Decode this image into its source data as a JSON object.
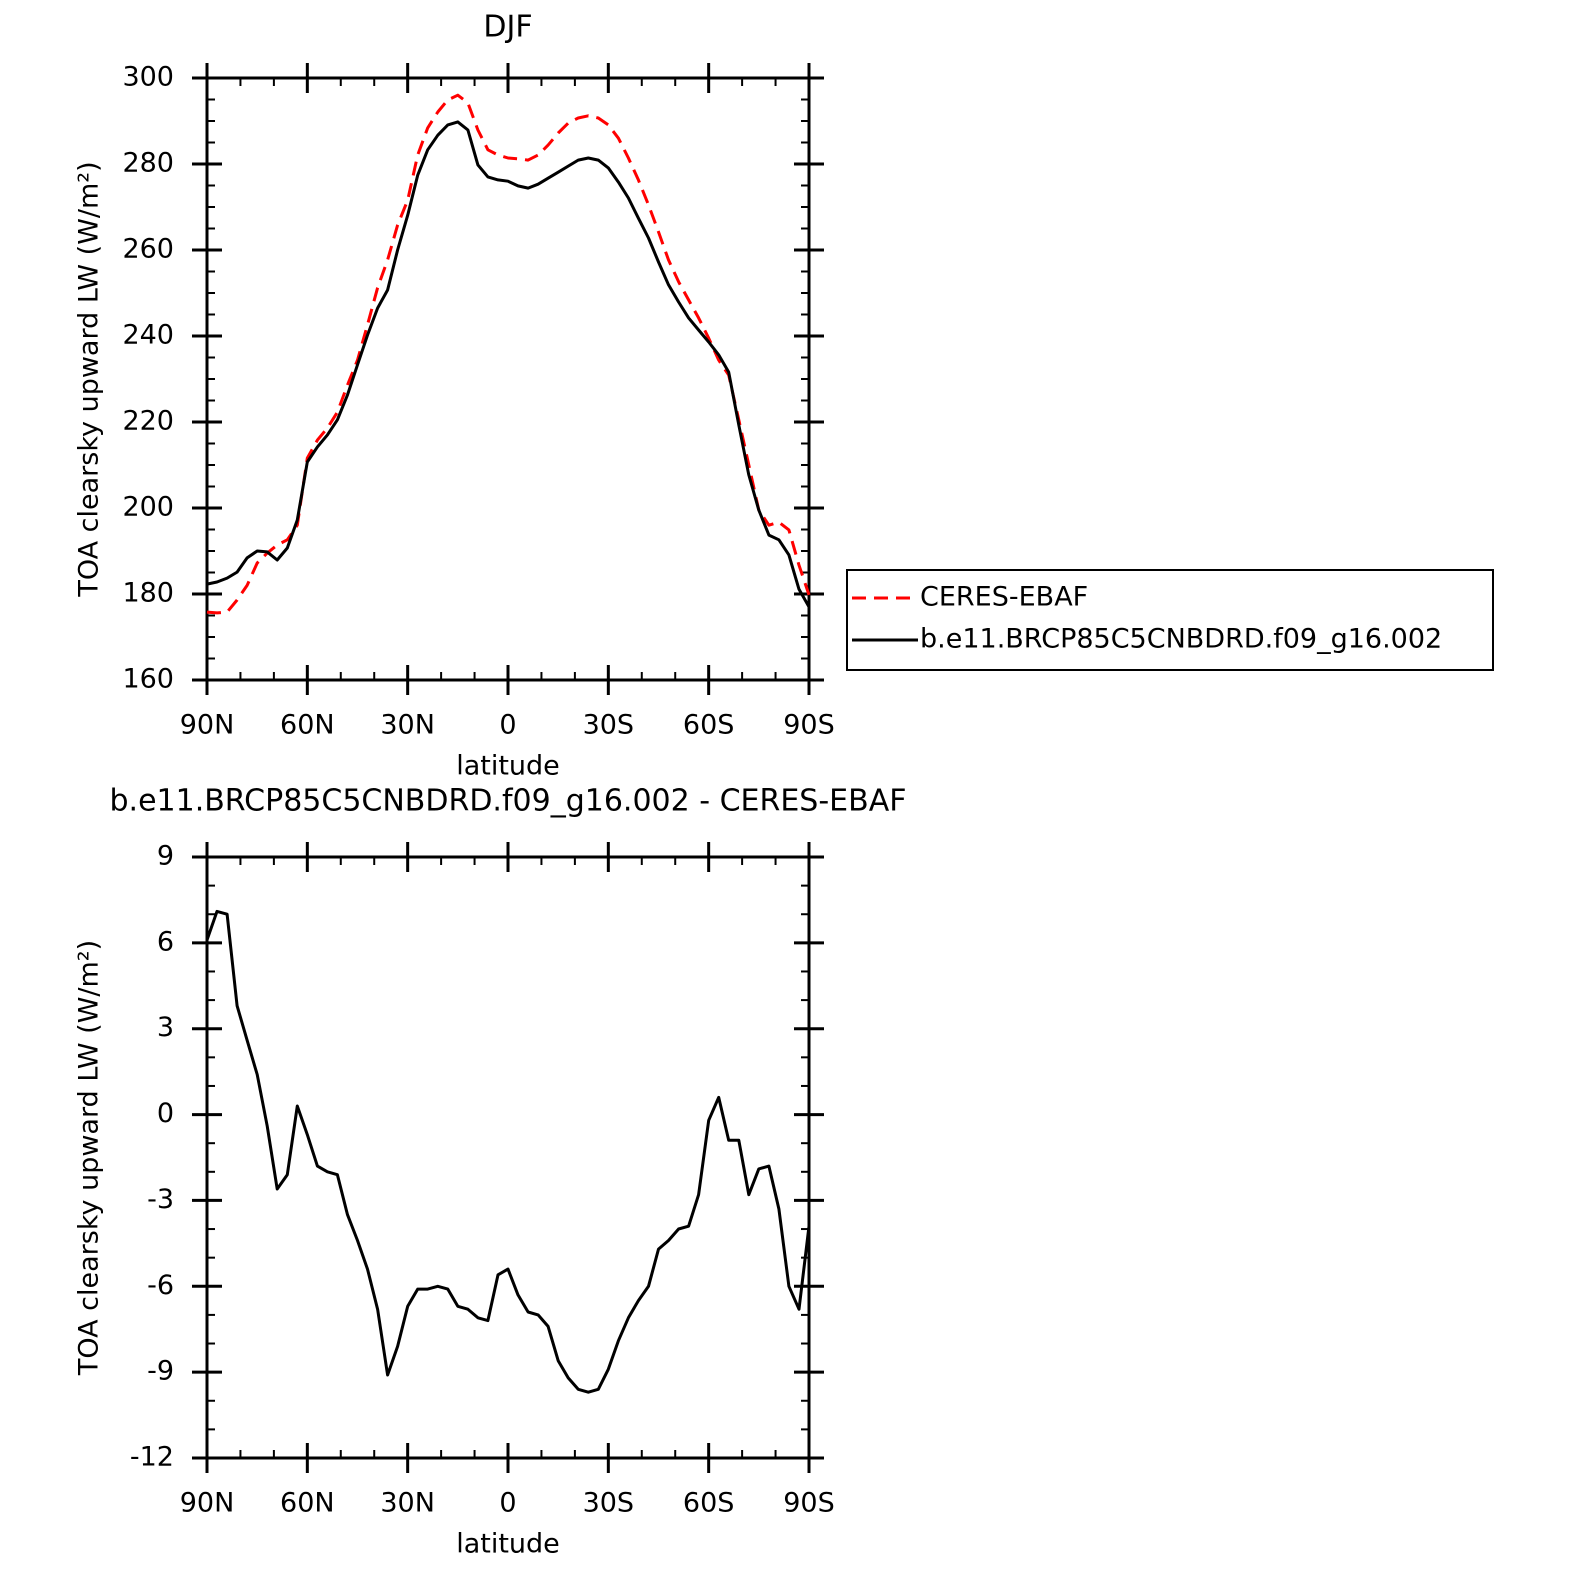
{
  "chart_data": [
    {
      "type": "line",
      "title": "DJF",
      "xlabel": "latitude",
      "ylabel": "TOA clearsky upward LW (W/m²)",
      "x": [
        90,
        87,
        84,
        81,
        78,
        75,
        72,
        69,
        66,
        63,
        60,
        57,
        54,
        51,
        48,
        45,
        42,
        39,
        36,
        33,
        30,
        27,
        24,
        21,
        18,
        15,
        12,
        9,
        6,
        3,
        0,
        -3,
        -6,
        -9,
        -12,
        -15,
        -18,
        -21,
        -24,
        -27,
        -30,
        -33,
        -36,
        -39,
        -42,
        -45,
        -48,
        -51,
        -54,
        -57,
        -60,
        -63,
        -66,
        -69,
        -72,
        -75,
        -78,
        -81,
        -84,
        -87,
        -90
      ],
      "series": [
        {
          "name": "CERES-EBAF",
          "color": "#ff0000",
          "dashed": true,
          "values": [
            175.8,
            175.6,
            175.8,
            178.6,
            182,
            187.2,
            189.5,
            191.4,
            192.6,
            196,
            211.6,
            215.8,
            218.6,
            222.3,
            228.6,
            234.4,
            242.6,
            251.2,
            257.7,
            265.8,
            271.6,
            282.1,
            288.4,
            292.1,
            294.9,
            296,
            294.2,
            287.9,
            283.3,
            282.1,
            281.4,
            281.2,
            280.9,
            282.1,
            284.4,
            287.2,
            289.5,
            290.7,
            291.2,
            290.7,
            289.1,
            286,
            281.4,
            276.3,
            270.5,
            264.2,
            257.7,
            252.6,
            248.4,
            244.2,
            239.5,
            234.4,
            230.9,
            220.5,
            210,
            199.5,
            196,
            196.7,
            194.9,
            186.7,
            179.8
          ]
        },
        {
          "name": "b.e11.BRCP85C5CNBDRD.f09_g16.002",
          "color": "#000000",
          "dashed": false,
          "values": [
            182.3,
            182.8,
            183.7,
            185.1,
            188.4,
            190,
            189.8,
            187.9,
            190.7,
            197.2,
            210.7,
            214.2,
            217,
            220.5,
            226.3,
            233.3,
            240.2,
            246.5,
            250.7,
            260,
            268.1,
            277.4,
            283.3,
            286.7,
            289.1,
            289.8,
            287.9,
            279.8,
            277,
            276.3,
            276,
            274.9,
            274.4,
            275.3,
            276.7,
            278.1,
            279.5,
            280.9,
            281.4,
            280.9,
            279.1,
            275.8,
            272.1,
            267.4,
            262.8,
            257.2,
            251.9,
            247.9,
            244.2,
            241.4,
            238.6,
            235.6,
            231.6,
            219.3,
            207.7,
            199.5,
            193.7,
            192.6,
            189.1,
            181.1,
            177
          ]
        }
      ],
      "xlim": [
        90,
        -90
      ],
      "xticks": [
        {
          "value": 90,
          "label": "90N"
        },
        {
          "value": 60,
          "label": "60N"
        },
        {
          "value": 30,
          "label": "30N"
        },
        0,
        {
          "value": -30,
          "label": "30S"
        },
        {
          "value": -60,
          "label": "60S"
        },
        {
          "value": -90,
          "label": "90S"
        }
      ],
      "xminorticks": [
        80,
        70,
        50,
        40,
        20,
        10,
        -10,
        -20,
        -40,
        -50,
        -70,
        -80
      ],
      "ylim": [
        160,
        300
      ],
      "yticks": [
        160,
        180,
        200,
        220,
        240,
        260,
        280,
        300
      ],
      "yminorticks": [
        165,
        170,
        175,
        185,
        190,
        195,
        205,
        210,
        215,
        225,
        230,
        235,
        245,
        250,
        255,
        265,
        270,
        275,
        285,
        290,
        295
      ],
      "legend": "right"
    },
    {
      "type": "line",
      "title": "b.e11.BRCP85C5CNBDRD.f09_g16.002 - CERES-EBAF",
      "xlabel": "latitude",
      "ylabel": "TOA clearsky upward LW (W/m²)",
      "x": [
        90,
        87,
        84,
        81,
        78,
        75,
        72,
        69,
        66,
        63,
        60,
        57,
        54,
        51,
        48,
        45,
        42,
        39,
        36,
        33,
        30,
        27,
        24,
        21,
        18,
        15,
        12,
        9,
        6,
        3,
        0,
        -3,
        -6,
        -9,
        -12,
        -15,
        -18,
        -21,
        -24,
        -27,
        -30,
        -33,
        -36,
        -39,
        -42,
        -45,
        -48,
        -51,
        -54,
        -57,
        -60,
        -63,
        -66,
        -69,
        -72,
        -75,
        -78,
        -81,
        -84,
        -87,
        -90
      ],
      "color": "#000000",
      "values": [
        6.1,
        7.1,
        7.0,
        3.8,
        2.6,
        1.4,
        -0.4,
        -2.6,
        -2.1,
        0.3,
        -0.7,
        -1.8,
        -2.0,
        -2.1,
        -3.5,
        -4.4,
        -5.4,
        -6.8,
        -9.1,
        -8.1,
        -6.7,
        -6.1,
        -6.1,
        -6.0,
        -6.1,
        -6.7,
        -6.8,
        -7.1,
        -7.2,
        -5.6,
        -5.4,
        -6.3,
        -6.9,
        -7.0,
        -7.4,
        -8.6,
        -9.2,
        -9.6,
        -9.7,
        -9.6,
        -8.9,
        -7.9,
        -7.1,
        -6.5,
        -6.0,
        -4.7,
        -4.4,
        -4.0,
        -3.9,
        -2.8,
        -0.2,
        0.6,
        -0.9,
        -0.9,
        -2.8,
        -1.9,
        -1.8,
        -3.3,
        -6.0,
        -6.8,
        -3.9
      ],
      "xlim": [
        90,
        -90
      ],
      "xticks": [
        {
          "value": 90,
          "label": "90N"
        },
        {
          "value": 60,
          "label": "60N"
        },
        {
          "value": 30,
          "label": "30N"
        },
        0,
        {
          "value": -30,
          "label": "30S"
        },
        {
          "value": -60,
          "label": "60S"
        },
        {
          "value": -90,
          "label": "90S"
        }
      ],
      "xminorticks": [
        80,
        70,
        50,
        40,
        20,
        10,
        -10,
        -20,
        -40,
        -50,
        -70,
        -80
      ],
      "ylim": [
        -12,
        9
      ],
      "yticks": [
        -12,
        -9,
        -6,
        -3,
        0,
        3,
        6,
        9
      ],
      "yminorticks": [
        -11,
        -10,
        -8,
        -7,
        -5,
        -4,
        -2,
        -1,
        1,
        2,
        4,
        5,
        7,
        8
      ]
    }
  ]
}
